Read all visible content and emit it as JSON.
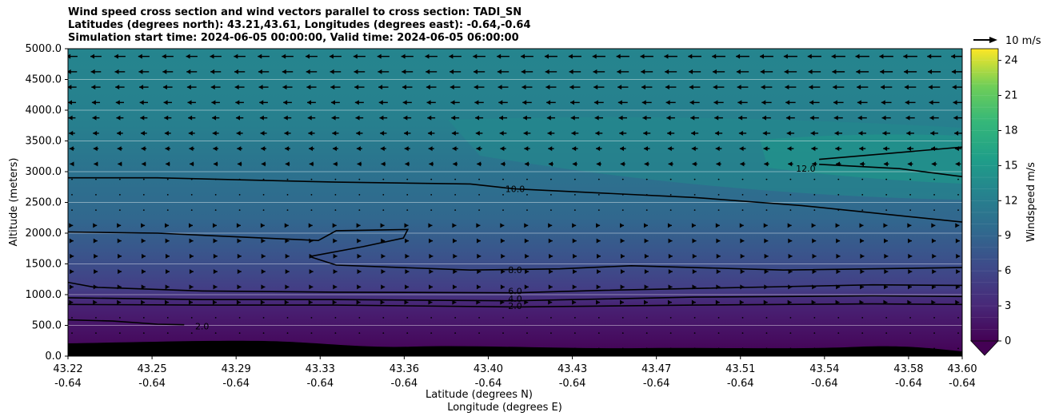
{
  "chart_data": {
    "type": "contour",
    "title_lines": [
      "Wind speed cross section and wind vectors parallel to cross section: TADI_SN",
      "Latitudes (degrees north): 43.21,43.61, Longitudes (degrees east): -0.64,-0.64",
      "Simulation start time: 2024-06-05 00:00:00, Valid time: 2024-06-05 06:00:00"
    ],
    "ylabel": "Altitude (meters)",
    "xlabel_lines": [
      "Latitude (degrees N)",
      "Longitude (degrees E)"
    ],
    "ylim": [
      0,
      5000
    ],
    "yticks": [
      "0.0",
      "500.0",
      "1000.0",
      "1500.0",
      "2000.0",
      "2500.0",
      "3000.0",
      "3500.0",
      "4000.0",
      "4500.0",
      "5000.0"
    ],
    "xticks_lat": [
      "43.22",
      "43.25",
      "43.29",
      "43.33",
      "43.36",
      "43.40",
      "43.43",
      "43.47",
      "43.51",
      "43.54",
      "43.58",
      "43.60"
    ],
    "xticks_lon": [
      "-0.64",
      "-0.64",
      "-0.64",
      "-0.64",
      "-0.64",
      "-0.64",
      "-0.64",
      "-0.64",
      "-0.64",
      "-0.64",
      "-0.64",
      "-0.64"
    ],
    "colorbar": {
      "label": "Windspeed m/s",
      "ticks": [
        "0",
        "3",
        "6",
        "9",
        "12",
        "15",
        "18",
        "21",
        "24"
      ],
      "range": [
        0,
        25
      ],
      "colormap": "viridis",
      "extend": "min"
    },
    "quiver_key": "10 m/s",
    "contour_labels": [
      {
        "text": "10.0",
        "x": 0.5,
        "y": 2720
      },
      {
        "text": "12.0",
        "x": 0.825,
        "y": 3050
      },
      {
        "text": "8.0",
        "x": 0.5,
        "y": 1400
      },
      {
        "text": "6.0",
        "x": 0.5,
        "y": 1060
      },
      {
        "text": "4.0",
        "x": 0.5,
        "y": 935
      },
      {
        "text": "2.0",
        "x": 0.5,
        "y": 820
      },
      {
        "text": "2.0",
        "x": 0.15,
        "y": 490
      }
    ],
    "contours": [
      {
        "level": 10,
        "points": [
          [
            0,
            2900
          ],
          [
            0.1,
            2900
          ],
          [
            0.3,
            2830
          ],
          [
            0.45,
            2800
          ],
          [
            0.5,
            2720
          ],
          [
            0.7,
            2580
          ],
          [
            0.82,
            2450
          ],
          [
            1.0,
            2180
          ]
        ]
      },
      {
        "level": 12,
        "points": [
          [
            0.84,
            3200
          ],
          [
            0.92,
            3300
          ],
          [
            1.0,
            3400
          ]
        ]
      },
      {
        "level": 12,
        "points": [
          [
            0.84,
            3120
          ],
          [
            0.93,
            3050
          ],
          [
            1.0,
            2920
          ]
        ]
      },
      {
        "level": 8,
        "points": [
          [
            0,
            2020
          ],
          [
            0.1,
            2000
          ],
          [
            0.22,
            1920
          ],
          [
            0.28,
            1880
          ],
          [
            0.3,
            2040
          ],
          [
            0.38,
            2060
          ],
          [
            0.375,
            1920
          ],
          [
            0.33,
            1780
          ],
          [
            0.27,
            1620
          ],
          [
            0.3,
            1480
          ],
          [
            0.45,
            1400
          ],
          [
            0.55,
            1420
          ],
          [
            0.63,
            1470
          ],
          [
            0.8,
            1400
          ],
          [
            1.0,
            1440
          ]
        ]
      },
      {
        "level": 6,
        "points": [
          [
            0,
            1200
          ],
          [
            0.03,
            1120
          ],
          [
            0.15,
            1060
          ],
          [
            0.3,
            1040
          ],
          [
            0.5,
            1030
          ],
          [
            0.6,
            1070
          ],
          [
            0.8,
            1130
          ],
          [
            0.9,
            1160
          ],
          [
            1.0,
            1150
          ]
        ]
      },
      {
        "level": 4,
        "points": [
          [
            0,
            950
          ],
          [
            0.15,
            920
          ],
          [
            0.3,
            920
          ],
          [
            0.5,
            900
          ],
          [
            0.7,
            960
          ],
          [
            0.9,
            980
          ],
          [
            1.0,
            970
          ]
        ]
      },
      {
        "level": 2,
        "points": [
          [
            0,
            840
          ],
          [
            0.15,
            830
          ],
          [
            0.3,
            830
          ],
          [
            0.5,
            800
          ],
          [
            0.7,
            830
          ],
          [
            0.9,
            850
          ],
          [
            1.0,
            840
          ]
        ]
      },
      {
        "level": 2,
        "points": [
          [
            0,
            590
          ],
          [
            0.05,
            570
          ],
          [
            0.1,
            520
          ],
          [
            0.13,
            510
          ]
        ]
      }
    ]
  }
}
